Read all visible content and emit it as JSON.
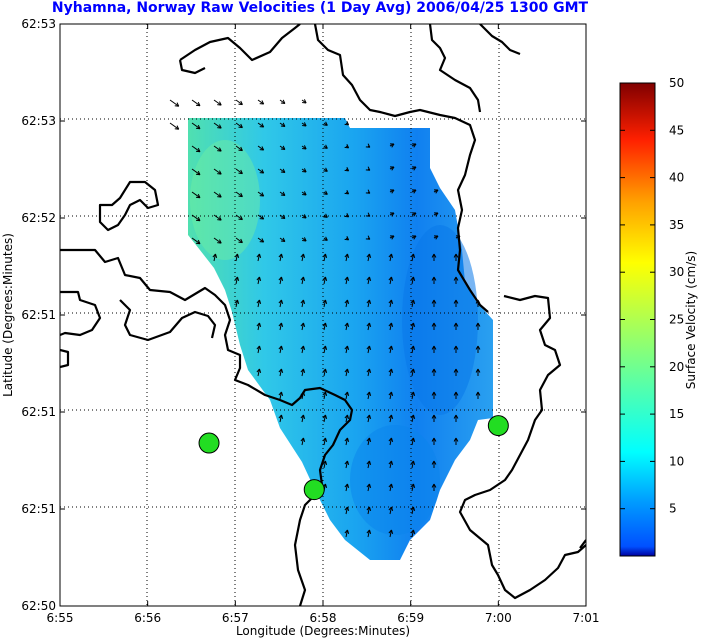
{
  "chart_data": {
    "type": "heatmap",
    "title": "Nyhamna, Norway Raw Velocities (1 Day Avg) 2006/04/25 1300 GMT",
    "xlabel": "Longitude (Degrees:Minutes)",
    "ylabel": "Latitude (Degrees:Minutes)",
    "x_ticks": [
      "6:55",
      "6:56",
      "6:57",
      "6:58",
      "6:59",
      "7:00",
      "7:01"
    ],
    "y_ticks": [
      "62:53",
      "62:53",
      "62:52",
      "62:51",
      "62:51",
      "62:51",
      "62:50"
    ],
    "grid": true,
    "colorbar": {
      "label": "Surface Velocity (cm/s)",
      "range": [
        0,
        50
      ],
      "ticks": [
        5,
        10,
        15,
        20,
        25,
        30,
        35,
        40,
        45,
        50
      ],
      "colormap": "jet"
    },
    "stations": [
      {
        "lon_min": 56.7,
        "lat_frac": 0.28
      },
      {
        "lon_min": 57.9,
        "lat_frac": 0.2
      },
      {
        "lon_min": 60.0,
        "lat_frac": 0.31
      }
    ]
  },
  "colors": {
    "title": "#0000ff",
    "coast": "#000000",
    "station": "#22dd22"
  }
}
